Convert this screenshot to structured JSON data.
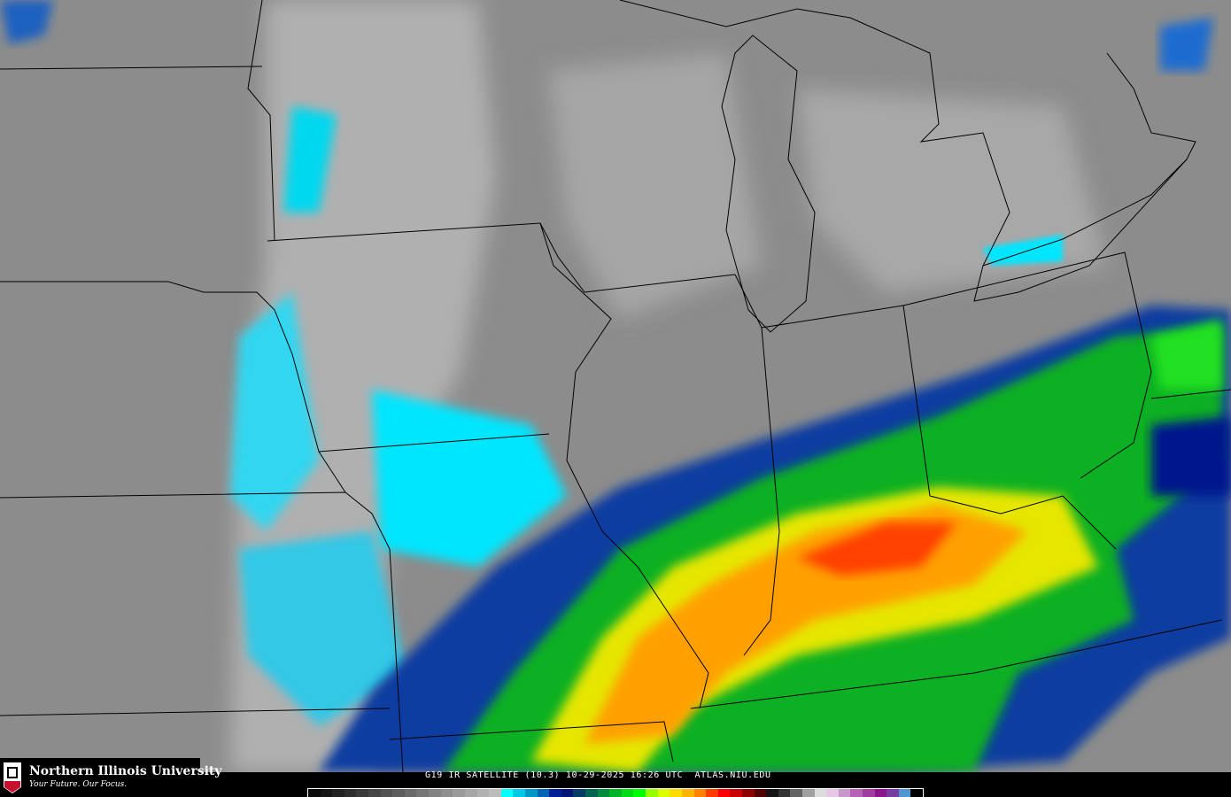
{
  "product_title": "G19 IR SATELLITE (10.3) 10-29-2025 16:26 UTC  ATLAS.NIU.EDU",
  "logo": {
    "name": "Northern Illinois University",
    "tagline": "Your Future. Our Focus.",
    "badge": "NIU"
  },
  "colors": {
    "background_cloudfree": "#8c8c8c",
    "boundary_lines": "#000000",
    "precip_core": "#ff5a00"
  },
  "colorbar": [
    "#0a0a0a",
    "#161616",
    "#222222",
    "#2e2e2e",
    "#3a3a3a",
    "#464646",
    "#525252",
    "#5e5e5e",
    "#6a6a6a",
    "#767676",
    "#828282",
    "#8e8e8e",
    "#9a9a9a",
    "#a6a6a6",
    "#b2b2b2",
    "#bcbcbc",
    "#00ffff",
    "#00c8e6",
    "#0096c8",
    "#0064b4",
    "#001e96",
    "#001478",
    "#003c64",
    "#006450",
    "#008c3c",
    "#00b428",
    "#00dc14",
    "#00ff00",
    "#96ff00",
    "#dcff00",
    "#ffdc00",
    "#ffb400",
    "#ff8200",
    "#ff3c00",
    "#ff0000",
    "#c80000",
    "#8c0000",
    "#500000",
    "#141414",
    "#323232",
    "#646464",
    "#a0a0a0",
    "#dcdcdc",
    "#e6c8e6",
    "#c896c8",
    "#b464b4",
    "#a03ca0",
    "#8c148c",
    "#783ca0",
    "#5096d2",
    "#000000"
  ]
}
